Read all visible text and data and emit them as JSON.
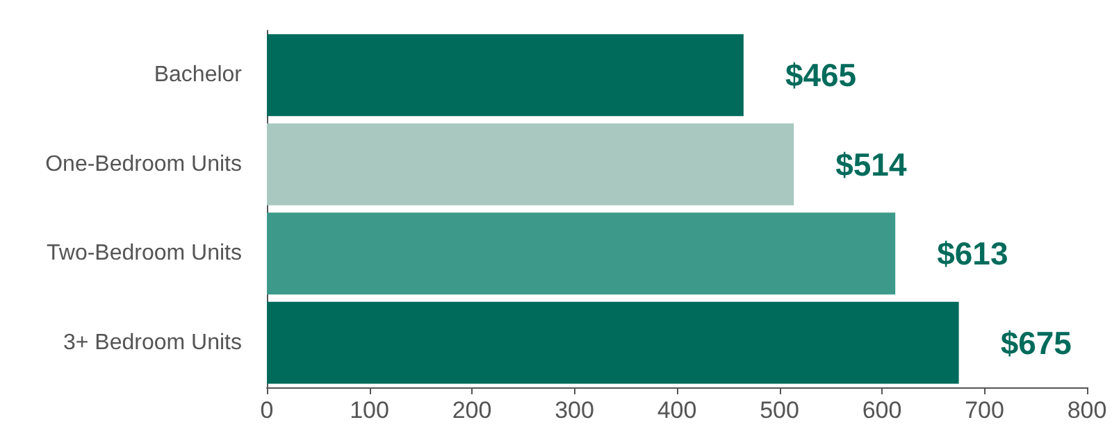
{
  "chart_data": {
    "type": "bar",
    "orientation": "horizontal",
    "categories": [
      "Bachelor",
      "One-Bedroom Units",
      "Two-Bedroom Units",
      "3+ Bedroom Units"
    ],
    "values": [
      465,
      514,
      613,
      675
    ],
    "colors": [
      "#006b5b",
      "#a8c8c0",
      "#3d9a8a",
      "#006b5b"
    ],
    "value_labels": [
      "$465",
      "$514",
      "$613",
      "$675"
    ],
    "xlim": [
      0,
      800
    ],
    "xticks": [
      0,
      100,
      200,
      300,
      400,
      500,
      600,
      700,
      800
    ],
    "grid": false
  }
}
